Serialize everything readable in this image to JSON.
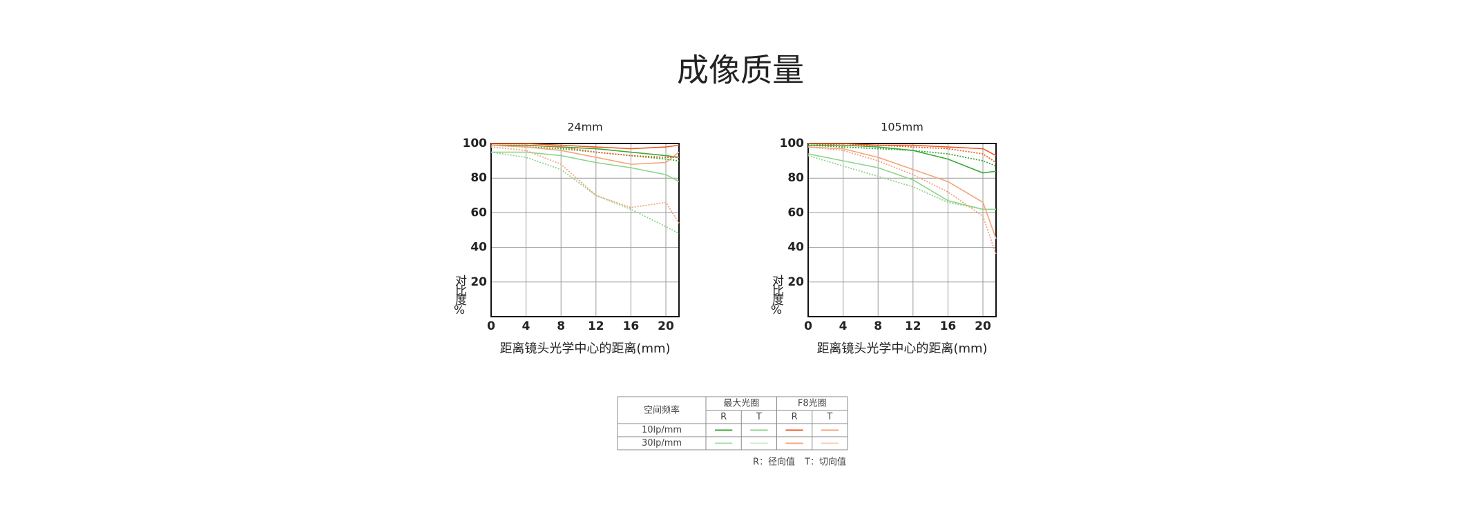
{
  "title": "成像质量",
  "chart_data": [
    {
      "type": "line",
      "title": "24mm",
      "xlabel": "距离镜头光学中心的距离(mm)",
      "ylabel": "对比度%",
      "x": [
        0,
        4,
        8,
        12,
        16,
        20,
        21.5
      ],
      "xlim": [
        0,
        21.5
      ],
      "ylim": [
        0,
        100
      ],
      "xticks": [
        0,
        4,
        8,
        12,
        16,
        20
      ],
      "yticks": [
        20,
        40,
        60,
        80,
        100
      ],
      "grid": true,
      "series": [
        {
          "color": "#3aaa35",
          "dash": "solid",
          "values": [
            99,
            99,
            98,
            97,
            95,
            93,
            92
          ]
        },
        {
          "color": "#3aaa35",
          "dash": "dotted",
          "values": [
            99,
            98,
            97,
            95,
            93,
            91,
            90
          ]
        },
        {
          "color": "#8ed48a",
          "dash": "solid",
          "values": [
            95,
            95,
            93,
            89,
            86,
            82,
            78
          ]
        },
        {
          "color": "#8ed48a",
          "dash": "dotted",
          "values": [
            95,
            92,
            85,
            70,
            62,
            52,
            48
          ]
        },
        {
          "color": "#ef5a24",
          "dash": "solid",
          "values": [
            100,
            100,
            99,
            98,
            97,
            98,
            99
          ]
        },
        {
          "color": "#ef5a24",
          "dash": "dotted",
          "values": [
            99,
            99,
            98,
            95,
            93,
            92,
            92
          ]
        },
        {
          "color": "#f5a47a",
          "dash": "solid",
          "values": [
            99,
            98,
            96,
            92,
            88,
            89,
            95
          ]
        },
        {
          "color": "#f5a47a",
          "dash": "dotted",
          "values": [
            98,
            96,
            88,
            70,
            63,
            66,
            54
          ]
        }
      ]
    },
    {
      "type": "line",
      "title": "105mm",
      "xlabel": "距离镜头光学中心的距离(mm)",
      "ylabel": "对比度%",
      "x": [
        0,
        4,
        8,
        12,
        16,
        20,
        21.5
      ],
      "xlim": [
        0,
        21.5
      ],
      "ylim": [
        0,
        100
      ],
      "xticks": [
        0,
        4,
        8,
        12,
        16,
        20
      ],
      "yticks": [
        20,
        40,
        60,
        80,
        100
      ],
      "grid": true,
      "series": [
        {
          "color": "#3aaa35",
          "dash": "solid",
          "values": [
            99,
            99,
            98,
            96,
            91,
            83,
            84
          ]
        },
        {
          "color": "#3aaa35",
          "dash": "dotted",
          "values": [
            99,
            98,
            97,
            96,
            94,
            90,
            87
          ]
        },
        {
          "color": "#8ed48a",
          "dash": "solid",
          "values": [
            94,
            90,
            86,
            79,
            67,
            62,
            62
          ]
        },
        {
          "color": "#8ed48a",
          "dash": "dotted",
          "values": [
            93,
            87,
            81,
            75,
            66,
            62,
            62
          ]
        },
        {
          "color": "#ef5a24",
          "dash": "solid",
          "values": [
            100,
            100,
            99,
            99,
            98,
            97,
            93
          ]
        },
        {
          "color": "#ef5a24",
          "dash": "dotted",
          "values": [
            100,
            99,
            99,
            98,
            97,
            94,
            89
          ]
        },
        {
          "color": "#f5a47a",
          "dash": "solid",
          "values": [
            98,
            97,
            92,
            85,
            78,
            66,
            45
          ]
        },
        {
          "color": "#f5a47a",
          "dash": "dotted",
          "values": [
            98,
            96,
            90,
            82,
            72,
            58,
            36
          ]
        }
      ]
    }
  ],
  "legend_table": {
    "corner": "空间频率",
    "groups": [
      "最大光圈",
      "F8光圈"
    ],
    "sub": [
      "R",
      "T",
      "R",
      "T"
    ],
    "rows": [
      {
        "label": "10lp/mm",
        "colors": [
          "#3aaa35",
          "#8ed48a",
          "#ef5a24",
          "#f5a47a"
        ]
      },
      {
        "label": "30lp/mm",
        "colors": [
          "#a8dea5",
          "#cdeccb",
          "#f5a47a",
          "#f9cdb4"
        ]
      }
    ]
  },
  "notes": [
    "R：径向值",
    "T：切向值"
  ]
}
